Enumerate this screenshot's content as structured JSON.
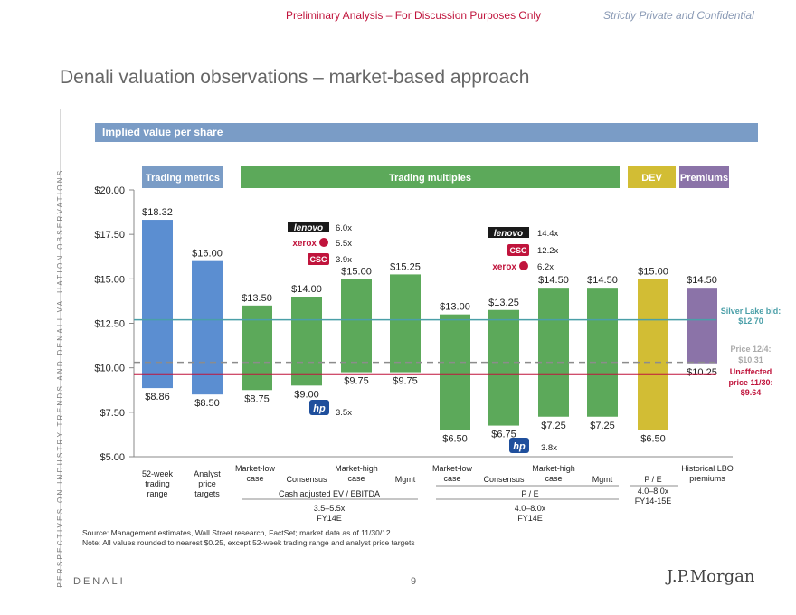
{
  "header": {
    "preliminary": "Preliminary Analysis – For Discussion Purposes Only",
    "confidential": "Strictly Private and Confidential"
  },
  "page_title": "Denali valuation observations – market-based approach",
  "side_text": "PERSPECTIVES ON INDUSTRY TRENDS AND DENALI VALUATION OBSERVATIONS",
  "banner": "Implied value per share",
  "colors": {
    "blue": "#5b8ed1",
    "green": "#5ca95a",
    "yellow": "#d2bd34",
    "purple": "#8b73a8",
    "silver_lake": "#4a9fa8",
    "unaffected": "#c0143c",
    "price": "#8c8c8c"
  },
  "chart_data": {
    "type": "bar",
    "subtype": "floating-range",
    "ylim": [
      5,
      20
    ],
    "yticks": [
      "$5.00",
      "$7.50",
      "$10.00",
      "$12.50",
      "$15.00",
      "$17.50",
      "$20.00"
    ],
    "ytick_values": [
      5,
      7.5,
      10,
      12.5,
      15,
      17.5,
      20
    ],
    "groups": [
      {
        "label": "Trading metrics",
        "color": "#7a9cc6",
        "bars": [
          0,
          1
        ]
      },
      {
        "label": "Trading multiples",
        "color": "#5ca95a",
        "bars": [
          2,
          9
        ]
      },
      {
        "label": "DEV",
        "color": "#d2bd34",
        "bars": [
          10,
          10
        ]
      },
      {
        "label": "Premiums",
        "color": "#8b73a8",
        "bars": [
          11,
          11
        ]
      }
    ],
    "bars": [
      {
        "low": 8.86,
        "high": 18.32,
        "low_label": "$8.86",
        "high_label": "$18.32",
        "color": "blue"
      },
      {
        "low": 8.5,
        "high": 16.0,
        "low_label": "$8.50",
        "high_label": "$16.00",
        "color": "blue"
      },
      {
        "low": 8.75,
        "high": 13.5,
        "low_label": "$8.75",
        "high_label": "$13.50",
        "color": "green"
      },
      {
        "low": 9.0,
        "high": 14.0,
        "low_label": "$9.00",
        "high_label": "$14.00",
        "color": "green"
      },
      {
        "low": 9.75,
        "high": 15.0,
        "low_label": "$9.75",
        "high_label": "$15.00",
        "color": "green"
      },
      {
        "low": 9.75,
        "high": 15.25,
        "low_label": "$9.75",
        "high_label": "$15.25",
        "color": "green"
      },
      {
        "low": 6.5,
        "high": 13.0,
        "low_label": "$6.50",
        "high_label": "$13.00",
        "color": "green"
      },
      {
        "low": 6.75,
        "high": 13.25,
        "low_label": "$6.75",
        "high_label": "$13.25",
        "color": "green"
      },
      {
        "low": 7.25,
        "high": 14.5,
        "low_label": "$7.25",
        "high_label": "$14.50",
        "color": "green"
      },
      {
        "low": 7.25,
        "high": 14.5,
        "low_label": "$7.25",
        "high_label": "$14.50",
        "color": "green"
      },
      {
        "low": 6.5,
        "high": 15.0,
        "low_label": "$6.50",
        "high_label": "$15.00",
        "color": "yellow"
      },
      {
        "low": 10.25,
        "high": 14.5,
        "low_label": "$10.25",
        "high_label": "$14.50",
        "color": "purple"
      }
    ],
    "reference_lines": [
      {
        "value": 12.7,
        "label": "Silver Lake bid: $12.70",
        "style": "solid",
        "color": "silver_lake"
      },
      {
        "value": 10.31,
        "label": "Price 12/4: $10.31",
        "style": "dashed",
        "color": "price"
      },
      {
        "value": 9.64,
        "label": "Unaffected price 11/30: $9.64",
        "style": "solid",
        "color": "unaffected"
      }
    ],
    "comparables_1": [
      {
        "company": "lenovo",
        "multiple": "6.0x"
      },
      {
        "company": "xerox",
        "multiple": "5.5x"
      },
      {
        "company": "CSC",
        "multiple": "3.9x"
      }
    ],
    "comparables_1_low": {
      "company": "hp",
      "multiple": "3.5x"
    },
    "comparables_2": [
      {
        "company": "lenovo",
        "multiple": "14.4x"
      },
      {
        "company": "CSC",
        "multiple": "12.2x"
      },
      {
        "company": "xerox",
        "multiple": "6.2x"
      }
    ],
    "comparables_2_low": {
      "company": "hp",
      "multiple": "3.8x"
    },
    "x_labels": [
      "52-week trading range",
      "Analyst price targets",
      "Market-low case",
      "Consensus",
      "Market-high case",
      "Mgmt",
      "Market-low case",
      "Consensus",
      "Market-high case",
      "Mgmt",
      "P / E",
      "Historical LBO premiums"
    ],
    "subgroups": [
      {
        "label": "Cash adjusted EV / EBITDA",
        "range": "3.5–5.5x",
        "basis": "FY14E"
      },
      {
        "label": "P / E",
        "range": "4.0–8.0x",
        "basis": "FY14E"
      },
      {
        "label": "",
        "range": "4.0–8.0x",
        "basis": "FY14-15E"
      }
    ]
  },
  "notes": {
    "source": "Source: Management estimates, Wall Street research, FactSet; market data as of 11/30/12",
    "note": "Note: All values rounded to nearest $0.25, except 52-week trading range and analyst price targets"
  },
  "footer": {
    "company": "DENALI",
    "page": "9",
    "bank": "J.P.Morgan"
  }
}
